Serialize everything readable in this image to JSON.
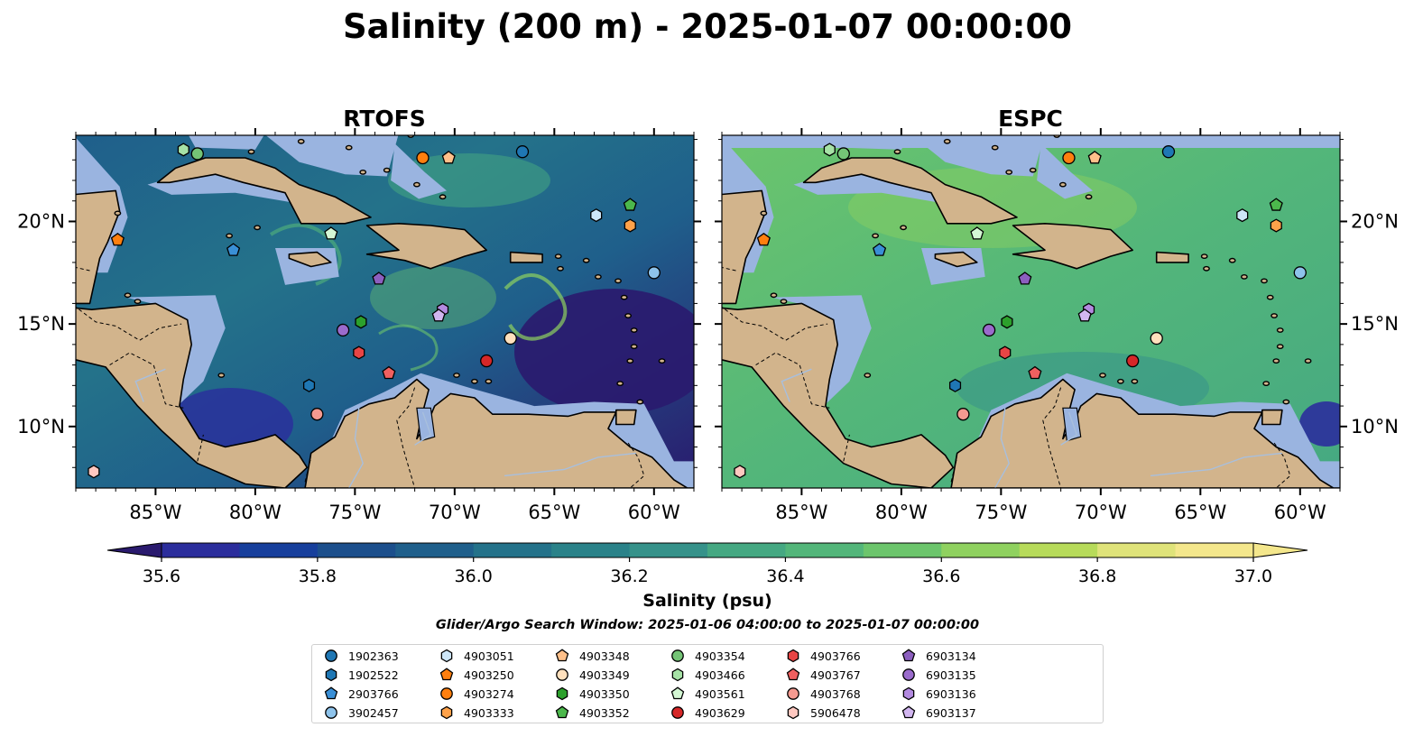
{
  "figure": {
    "title": "Salinity (200 m) - 2025-01-07 00:00:00",
    "panels": [
      {
        "title": "RTOFS"
      },
      {
        "title": "ESPC"
      }
    ],
    "x_ticks": [
      "85°W",
      "80°W",
      "75°W",
      "70°W",
      "65°W",
      "60°W"
    ],
    "y_ticks": [
      "20°N",
      "15°N",
      "10°N"
    ],
    "colorbar": {
      "label": "Salinity (psu)",
      "ticks": [
        "35.6",
        "35.8",
        "36.0",
        "36.2",
        "36.4",
        "36.6",
        "36.8",
        "37.0"
      ],
      "min": 35.6,
      "max": 37.0,
      "step": 0.1,
      "colors": [
        "#2a1a6e",
        "#2b2d9c",
        "#173f9c",
        "#1c4f8c",
        "#1f5f8b",
        "#24728a",
        "#2a8289",
        "#36928a",
        "#45a882",
        "#53b67a",
        "#6cc56c",
        "#8fd15f",
        "#b7db5a",
        "#dfe37a",
        "#f4e78c"
      ]
    },
    "subtitle": "Glider/Argo Search Window: 2025-01-06 04:00:00 to 2025-01-07 00:00:00"
  },
  "map_extent": {
    "lon_min": -89,
    "lon_max": -58,
    "lat_min": 7,
    "lat_max": 24.2
  },
  "colors": {
    "land": "#d2b48c",
    "shelf": "#9ab4e0",
    "coast": "#000000"
  },
  "platforms": [
    {
      "id": "1902363",
      "marker": "circle",
      "color": "#1f77b4",
      "lon": -66.6,
      "lat": 23.4
    },
    {
      "id": "1902522",
      "marker": "hexagon",
      "color": "#1f77b4",
      "lon": -77.3,
      "lat": 12.0
    },
    {
      "id": "2903766",
      "marker": "pentagon",
      "color": "#3a8fd6",
      "lon": -81.1,
      "lat": 18.6
    },
    {
      "id": "3902457",
      "marker": "circle",
      "color": "#8ec3eb",
      "lon": -60.0,
      "lat": 17.5
    },
    {
      "id": "4903051",
      "marker": "hexagon",
      "color": "#cde6f8",
      "lon": -62.9,
      "lat": 20.3
    },
    {
      "id": "4903250",
      "marker": "pentagon",
      "color": "#ff7f0e",
      "lon": -86.9,
      "lat": 19.1
    },
    {
      "id": "4903274",
      "marker": "circle",
      "color": "#ff7f0e",
      "lon": -71.6,
      "lat": 23.1
    },
    {
      "id": "4903333",
      "marker": "hexagon",
      "color": "#ffa24a",
      "lon": -61.2,
      "lat": 19.8
    },
    {
      "id": "4903348",
      "marker": "pentagon",
      "color": "#ffc08a",
      "lon": -70.3,
      "lat": 23.1
    },
    {
      "id": "4903349",
      "marker": "circle",
      "color": "#ffe0bd",
      "lon": -67.2,
      "lat": 14.3
    },
    {
      "id": "4903350",
      "marker": "hexagon",
      "color": "#2ca02c",
      "lon": -74.7,
      "lat": 15.1
    },
    {
      "id": "4903352",
      "marker": "pentagon",
      "color": "#4cb84c",
      "lon": -61.2,
      "lat": 20.8
    },
    {
      "id": "4903354",
      "marker": "circle",
      "color": "#74c476",
      "lon": -82.9,
      "lat": 23.3
    },
    {
      "id": "4903466",
      "marker": "hexagon",
      "color": "#a6e2a6",
      "lon": -83.6,
      "lat": 23.5
    },
    {
      "id": "4903561",
      "marker": "pentagon",
      "color": "#d4f7d4",
      "lon": -76.2,
      "lat": 19.4
    },
    {
      "id": "4903629",
      "marker": "circle",
      "color": "#d62728",
      "lon": -68.4,
      "lat": 13.2
    },
    {
      "id": "4903766",
      "marker": "hexagon",
      "color": "#e84545",
      "lon": -74.8,
      "lat": 13.6
    },
    {
      "id": "4903767",
      "marker": "pentagon",
      "color": "#f06060",
      "lon": -73.3,
      "lat": 12.6
    },
    {
      "id": "4903768",
      "marker": "circle",
      "color": "#f59a90",
      "lon": -76.9,
      "lat": 10.6
    },
    {
      "id": "5906478",
      "marker": "hexagon",
      "color": "#ffc8c0",
      "lon": -88.1,
      "lat": 7.8
    },
    {
      "id": "6903134",
      "marker": "pentagon",
      "color": "#8c5fbf",
      "lon": -73.8,
      "lat": 17.2
    },
    {
      "id": "6903135",
      "marker": "circle",
      "color": "#9a6bcc",
      "lon": -75.6,
      "lat": 14.7
    },
    {
      "id": "6903136",
      "marker": "hexagon",
      "color": "#b38ae0",
      "lon": -70.6,
      "lat": 15.7
    },
    {
      "id": "6903137",
      "marker": "pentagon",
      "color": "#d2b6f0",
      "lon": -70.8,
      "lat": 15.4
    }
  ]
}
